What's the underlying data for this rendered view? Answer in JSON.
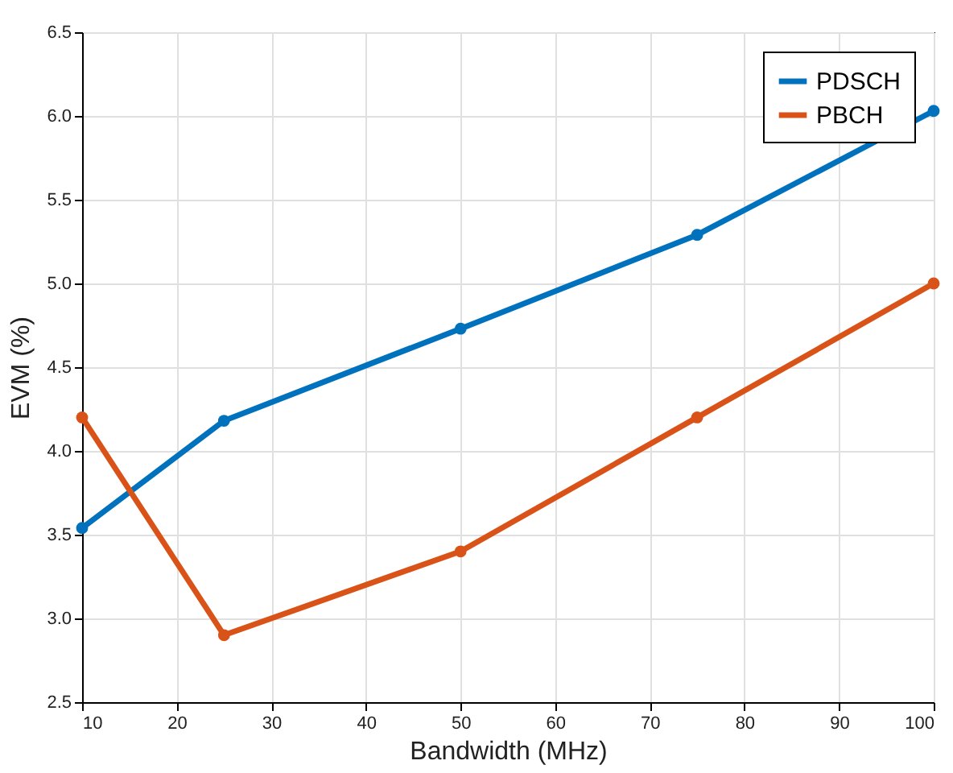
{
  "chart_data": {
    "type": "line",
    "xlabel": "Bandwidth (MHz)",
    "ylabel": "EVM (%)",
    "x": [
      10,
      25,
      50,
      75,
      100
    ],
    "series": [
      {
        "name": "PDSCH",
        "color": "#0072bd",
        "values": [
          3.54,
          4.18,
          4.73,
          5.29,
          6.03
        ]
      },
      {
        "name": "PBCH",
        "color": "#d95319",
        "values": [
          4.2,
          2.9,
          3.4,
          4.2,
          5.0
        ]
      }
    ],
    "xlim": [
      10,
      100
    ],
    "xticks": [
      10,
      20,
      30,
      40,
      50,
      60,
      70,
      80,
      90,
      100
    ],
    "ylim": [
      2.5,
      6.5
    ],
    "yticks": [
      2.5,
      {
        "value": 3,
        "label": "3.0"
      },
      3.5,
      {
        "value": 4,
        "label": "4.0"
      },
      4.5,
      {
        "value": 5,
        "label": "5.0"
      },
      5.5,
      {
        "value": 6,
        "label": "6.0"
      },
      6.5
    ],
    "grid": true,
    "legend": "top right",
    "marker": "circle",
    "line_style": "solid"
  }
}
